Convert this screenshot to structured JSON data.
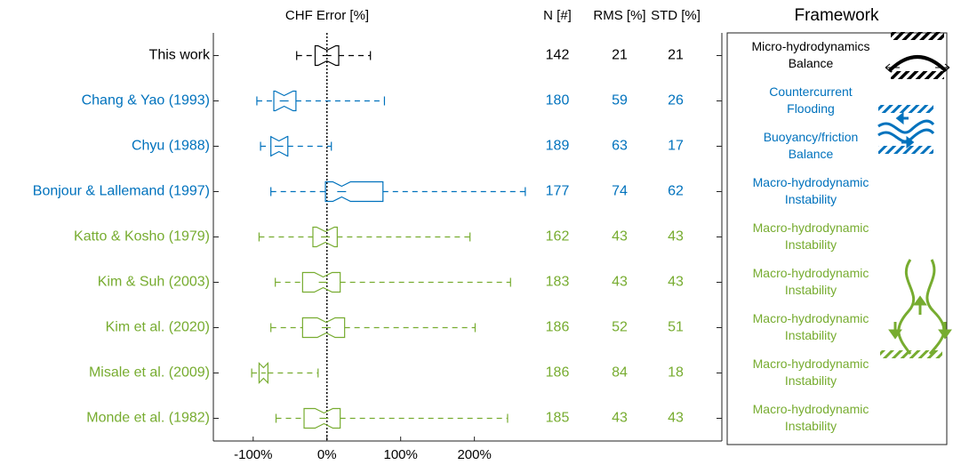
{
  "chart_data": {
    "type": "box",
    "title": "CHF Error [%]",
    "categories": [
      "This work",
      "Chang & Yao (1993)",
      "Chyu (1988)",
      "Bonjour & Lallemand (1997)",
      "Katto & Kosho (1979)",
      "Kim & Suh (2003)",
      "Kim et al. (2020)",
      "Misale et al. (2009)",
      "Monde et al. (1982)"
    ],
    "colors": [
      "#000000",
      "#0072bd",
      "#0072bd",
      "#0072bd",
      "#77ac30",
      "#77ac30",
      "#77ac30",
      "#77ac30",
      "#77ac30"
    ],
    "boxes": [
      {
        "whislo": -41,
        "q1": -16,
        "med": 0,
        "q3": 16,
        "whishi": 59
      },
      {
        "whislo": -95,
        "q1": -72,
        "med": -58,
        "q3": -42,
        "whishi": 78
      },
      {
        "whislo": -90,
        "q1": -76,
        "med": -65,
        "q3": -53,
        "whishi": 6
      },
      {
        "whislo": -76,
        "q1": -2,
        "med": 20,
        "q3": 76,
        "whishi": 269
      },
      {
        "whislo": -92,
        "q1": -19,
        "med": -2,
        "q3": 14,
        "whishi": 194
      },
      {
        "whislo": -70,
        "q1": -33,
        "med": -5,
        "q3": 18,
        "whishi": 249
      },
      {
        "whislo": -76,
        "q1": -33,
        "med": -1,
        "q3": 24,
        "whishi": 201
      },
      {
        "whislo": -102,
        "q1": -92,
        "med": -86,
        "q3": -80,
        "whishi": -12
      },
      {
        "whislo": -69,
        "q1": -31,
        "med": -4,
        "q3": 18,
        "whishi": 245
      }
    ],
    "reference_line": 0,
    "xlim": [
      -154,
      280
    ],
    "xticks": [
      {
        "value": -100,
        "label": "-100%"
      },
      {
        "value": 0,
        "label": "0%"
      },
      {
        "value": 100,
        "label": "100%"
      },
      {
        "value": 200,
        "label": "200%"
      }
    ],
    "table": {
      "columns": [
        "N [#]",
        "RMS [%]",
        "STD [%]"
      ],
      "rows": [
        [
          142,
          21,
          21
        ],
        [
          180,
          59,
          26
        ],
        [
          189,
          63,
          17
        ],
        [
          177,
          74,
          62
        ],
        [
          162,
          43,
          43
        ],
        [
          183,
          43,
          43
        ],
        [
          186,
          52,
          51
        ],
        [
          186,
          84,
          18
        ],
        [
          185,
          43,
          43
        ]
      ]
    },
    "framework_title": "Framework",
    "frameworks": [
      [
        "Micro-hydrodynamics",
        "Balance"
      ],
      [
        "Countercurrent",
        "Flooding"
      ],
      [
        "Buoyancy/friction",
        "Balance"
      ],
      [
        "Macro-hydrodynamic",
        "Instability"
      ],
      [
        "Macro-hydrodynamic",
        "Instability"
      ],
      [
        "Macro-hydrodynamic",
        "Instability"
      ],
      [
        "Macro-hydrodynamic",
        "Instability"
      ],
      [
        "Macro-hydrodynamic",
        "Instability"
      ],
      [
        "Macro-hydrodynamic",
        "Instability"
      ]
    ]
  }
}
